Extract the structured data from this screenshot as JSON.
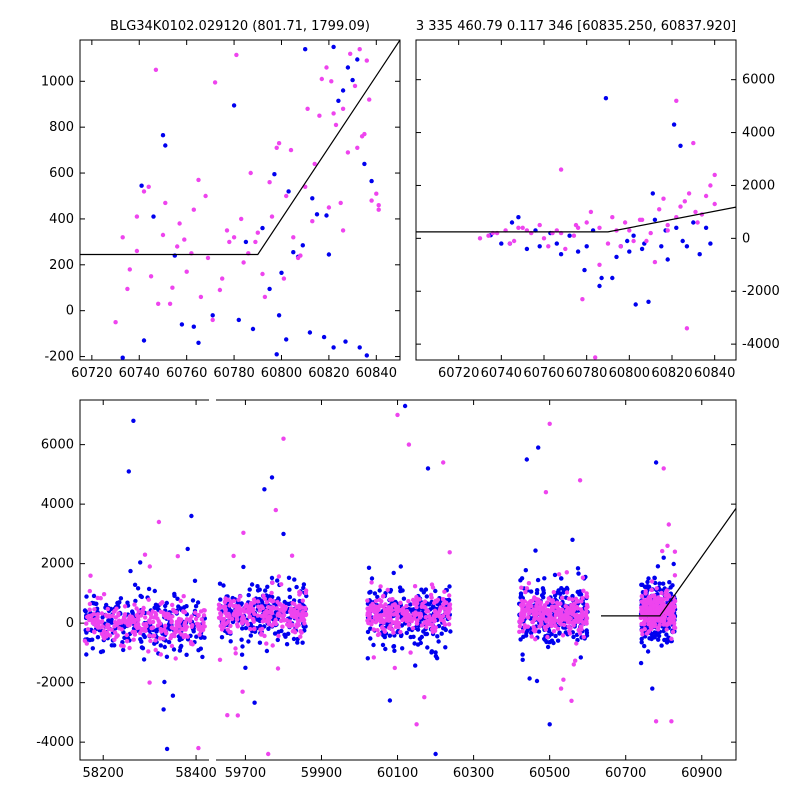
{
  "colors": {
    "blue": "#0000ee",
    "magenta": "#ee44ee",
    "model": "#000000"
  },
  "chart_data": [
    {
      "type": "scatter",
      "title": "BLG34K0102.029120 (801.71, 1799.09)",
      "xlim": [
        60715,
        60850
      ],
      "ylim": [
        -215,
        1180
      ],
      "xticks": [
        60720,
        60740,
        60760,
        60780,
        60800,
        60820,
        60840
      ],
      "yticks": [
        -200,
        0,
        200,
        400,
        600,
        800,
        1000
      ],
      "ytick_side": "left",
      "grid": false,
      "model": {
        "x": [
          60715,
          60790,
          60850
        ],
        "y": [
          245,
          245,
          1180
        ]
      },
      "series": [
        {
          "color": "blue",
          "x": [
            60733,
            60741,
            60746,
            60750,
            60751,
            60755,
            60763,
            60771,
            60780,
            60782,
            60788,
            60795,
            60798,
            60802,
            60805,
            60809,
            60812,
            60815,
            60818,
            60820,
            60822,
            60824,
            60826,
            60828,
            60830,
            60832,
            60835,
            60838,
            60803,
            60797,
            60792,
            60800,
            60807,
            60813,
            60819,
            60827,
            60833,
            60742,
            60758,
            60765,
            60785,
            60799,
            60810,
            60822,
            60836
          ],
          "y": [
            -205,
            545,
            410,
            765,
            720,
            240,
            -70,
            -20,
            895,
            -40,
            -80,
            95,
            -190,
            -125,
            255,
            285,
            -95,
            420,
            -115,
            245,
            -160,
            915,
            960,
            1060,
            1005,
            1095,
            640,
            565,
            520,
            595,
            360,
            165,
            235,
            490,
            415,
            -135,
            -160,
            -130,
            -60,
            -140,
            300,
            -20,
            1140,
            1150,
            -195
          ]
        },
        {
          "color": "magenta",
          "x": [
            60730,
            60733,
            60736,
            60739,
            60742,
            60745,
            60748,
            60751,
            60754,
            60757,
            60760,
            60763,
            60766,
            60769,
            60772,
            60775,
            60778,
            60781,
            60784,
            60787,
            60790,
            60793,
            60796,
            60799,
            60802,
            60805,
            60808,
            60811,
            60814,
            60817,
            60820,
            60823,
            60826,
            60829,
            60832,
            60835,
            60838,
            60841,
            60744,
            60750,
            60756,
            60762,
            60768,
            60774,
            60780,
            60786,
            60792,
            60798,
            60804,
            60810,
            60816,
            60822,
            60828,
            60834,
            60840,
            60735,
            60753,
            60771,
            60789,
            60807,
            60825,
            60837,
            60747,
            60765,
            60783,
            60801,
            60819,
            60831,
            60739,
            60759,
            60777,
            60795,
            60813,
            60826,
            60833,
            60836,
            60841,
            60821
          ],
          "y": [
            -50,
            320,
            180,
            260,
            520,
            150,
            30,
            470,
            100,
            380,
            170,
            440,
            60,
            230,
            995,
            140,
            300,
            1115,
            210,
            600,
            340,
            60,
            410,
            730,
            500,
            320,
            240,
            880,
            640,
            1010,
            450,
            810,
            350,
            1120,
            710,
            770,
            480,
            440,
            540,
            330,
            280,
            250,
            500,
            90,
            320,
            250,
            160,
            710,
            700,
            540,
            850,
            860,
            690,
            760,
            510,
            95,
            30,
            -40,
            300,
            230,
            470,
            920,
            1050,
            570,
            400,
            140,
            1060,
            980,
            410,
            310,
            350,
            560,
            390,
            880,
            1140,
            1090,
            460,
            1000
          ]
        }
      ]
    },
    {
      "type": "scatter",
      "title": "3 335 460.79 0.117 346 [60835.250, 60837.920]",
      "xlim": [
        60700,
        60850
      ],
      "ylim": [
        -4600,
        7500
      ],
      "xticks": [
        60720,
        60740,
        60760,
        60780,
        60800,
        60820,
        60840
      ],
      "yticks": [
        -4000,
        -2000,
        0,
        2000,
        4000,
        6000
      ],
      "ytick_side": "right",
      "grid": false,
      "model": {
        "x": [
          60700,
          60790,
          60850
        ],
        "y": [
          245,
          245,
          1180
        ]
      },
      "series": [
        {
          "color": "blue",
          "x": [
            60735,
            60740,
            60745,
            60748,
            60752,
            60758,
            60763,
            60768,
            60772,
            60776,
            60780,
            60783,
            60786,
            60789,
            60792,
            60796,
            60800,
            60803,
            60806,
            60809,
            60812,
            60815,
            60818,
            60821,
            60824,
            60827,
            60830,
            60833,
            60836,
            60838,
            60822,
            60811,
            60799,
            60787,
            60756,
            60744,
            60766,
            60794,
            60807,
            60825,
            60817,
            60779,
            60802
          ],
          "y": [
            120,
            -200,
            600,
            800,
            -400,
            -300,
            200,
            -600,
            100,
            -500,
            -300,
            300,
            -1800,
            5300,
            -1500,
            -300,
            -500,
            -2500,
            -400,
            -2400,
            700,
            -300,
            -800,
            4300,
            3500,
            -300,
            600,
            -600,
            400,
            -200,
            400,
            1700,
            -100,
            -1500,
            300,
            -200,
            -200,
            -700,
            -200,
            -100,
            300,
            -1200,
            100
          ]
        },
        {
          "color": "magenta",
          "x": [
            60730,
            60734,
            60738,
            60742,
            60746,
            60750,
            60754,
            60758,
            60762,
            60766,
            60770,
            60774,
            60778,
            60782,
            60786,
            60790,
            60794,
            60798,
            60802,
            60806,
            60810,
            60814,
            60818,
            60822,
            60826,
            60830,
            60834,
            60838,
            60736,
            60744,
            60752,
            60760,
            60768,
            60776,
            60784,
            60792,
            60800,
            60808,
            60816,
            60824,
            60832,
            60840,
            60748,
            60764,
            60780,
            60796,
            60812,
            60828,
            60840,
            60822,
            60827,
            60836,
            60818,
            60831,
            60775,
            60786,
            60768,
            60805
          ],
          "y": [
            0,
            100,
            200,
            300,
            -100,
            400,
            200,
            500,
            -300,
            300,
            -400,
            100,
            -2300,
            1000,
            400,
            -200,
            300,
            600,
            -100,
            700,
            200,
            1100,
            500,
            5200,
            1400,
            3600,
            900,
            2000,
            200,
            -200,
            300,
            0,
            2600,
            400,
            -4500,
            800,
            300,
            -100,
            1500,
            1200,
            600,
            1300,
            400,
            200,
            600,
            -300,
            -900,
            1700,
            2400,
            800,
            -3400,
            1600,
            300,
            1000,
            500,
            -1000,
            200,
            700
          ]
        }
      ]
    },
    {
      "type": "scatter",
      "title": "",
      "panel": "full-lightcurve",
      "ylim": [
        -4600,
        7500
      ],
      "yticks": [
        -4000,
        -2000,
        0,
        2000,
        4000,
        6000
      ],
      "ytick_side": "left",
      "grid": false,
      "segments": [
        {
          "xlim": [
            58150,
            58430
          ],
          "xticks": [
            58200,
            58400
          ]
        },
        {
          "xlim": [
            59620,
            60990
          ],
          "xticks": [
            59700,
            59900,
            60100,
            60300,
            60500,
            60700,
            60900
          ]
        }
      ],
      "model": {
        "x": [
          60635,
          60790,
          61020
        ],
        "y": [
          245,
          245,
          4400
        ]
      },
      "clusters": [
        {
          "x": [
            58160,
            58420
          ],
          "center": -50,
          "spread": 300,
          "blue_outliers": [
            [
              58265,
              6800
            ],
            [
              58255,
              5100
            ],
            [
              58390,
              3600
            ],
            [
              58330,
              -2900
            ]
          ],
          "magenta_outliers": [
            [
              58320,
              3400
            ],
            [
              58405,
              -4200
            ],
            [
              58300,
              -2000
            ],
            [
              58290,
              2300
            ]
          ]
        },
        {
          "x": [
            59630,
            59860
          ],
          "center": 300,
          "spread": 300,
          "blue_outliers": [
            [
              59750,
              4500
            ],
            [
              59770,
              4900
            ],
            [
              59700,
              -1500
            ],
            [
              59800,
              3000
            ]
          ],
          "magenta_outliers": [
            [
              59800,
              6200
            ],
            [
              59760,
              -4400
            ],
            [
              59680,
              -3100
            ],
            [
              59780,
              3800
            ]
          ]
        },
        {
          "x": [
            60020,
            60240
          ],
          "center": 300,
          "spread": 300,
          "blue_outliers": [
            [
              60120,
              7300
            ],
            [
              60200,
              -4400
            ],
            [
              60080,
              -2600
            ],
            [
              60180,
              5200
            ]
          ],
          "magenta_outliers": [
            [
              60100,
              7000
            ],
            [
              60220,
              5400
            ],
            [
              60130,
              6000
            ],
            [
              60150,
              -3400
            ]
          ]
        },
        {
          "x": [
            60420,
            60600
          ],
          "center": 300,
          "spread": 300,
          "blue_outliers": [
            [
              60440,
              5500
            ],
            [
              60470,
              5900
            ],
            [
              60500,
              -3400
            ],
            [
              60560,
              2800
            ]
          ],
          "magenta_outliers": [
            [
              60500,
              6700
            ],
            [
              60490,
              4400
            ],
            [
              60530,
              -2200
            ],
            [
              60580,
              4800
            ]
          ]
        },
        {
          "x": [
            60740,
            60830
          ],
          "center": 400,
          "spread": 300,
          "blue_outliers": [
            [
              60780,
              5400
            ],
            [
              60770,
              -2200
            ],
            [
              60800,
              2200
            ],
            [
              60760,
              1500
            ]
          ],
          "magenta_outliers": [
            [
              60800,
              5200
            ],
            [
              60780,
              -3300
            ],
            [
              60820,
              -3300
            ],
            [
              60810,
              2600
            ]
          ]
        }
      ]
    }
  ]
}
